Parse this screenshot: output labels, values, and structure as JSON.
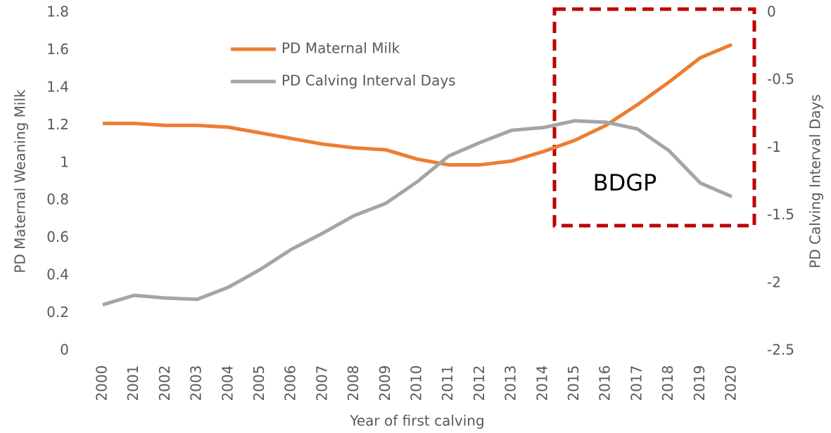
{
  "chart_data": {
    "type": "line",
    "categories": [
      "2000",
      "2001",
      "2002",
      "2003",
      "2004",
      "2005",
      "2006",
      "2007",
      "2008",
      "2009",
      "2010",
      "2011",
      "2012",
      "2013",
      "2014",
      "2015",
      "2016",
      "2017",
      "2018",
      "2019",
      "2020"
    ],
    "series": [
      {
        "name": "PD Maternal Milk",
        "color": "#ed7d31",
        "values": [
          1.21,
          1.21,
          1.2,
          1.2,
          1.19,
          1.16,
          1.13,
          1.1,
          1.08,
          1.07,
          1.02,
          0.99,
          0.99,
          1.01,
          1.06,
          1.12,
          1.2,
          1.31,
          1.43,
          1.56,
          1.63
        ]
      },
      {
        "name": "PD Calving Interval Days",
        "color": "#a5a5a5",
        "axis": "y2",
        "values": [
          -2.16,
          -2.09,
          -2.11,
          -2.12,
          -2.03,
          -1.9,
          -1.75,
          -1.63,
          -1.5,
          -1.41,
          -1.25,
          -1.06,
          -0.96,
          -0.87,
          -0.85,
          -0.8,
          -0.81,
          -0.86,
          -1.02,
          -1.26,
          -1.36
        ]
      }
    ],
    "ylabel": "PD Maternal Weaning Milk",
    "y2label": "PD Calving Interval Days",
    "xlabel": "Year of first calving",
    "ylim": [
      0,
      1.8
    ],
    "yticks": [
      0,
      0.2,
      0.4,
      0.6,
      0.8,
      1,
      1.2,
      1.4,
      1.6,
      1.8
    ],
    "y2lim": [
      -2.5,
      0
    ],
    "y2ticks": [
      -2.5,
      -2,
      -1.5,
      -1,
      -0.5,
      0
    ],
    "annotation": "BDGP",
    "grid": false,
    "legend": "top"
  }
}
